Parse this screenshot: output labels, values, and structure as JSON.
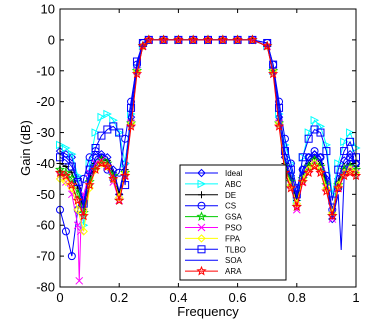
{
  "chart_data": {
    "type": "line",
    "title": "",
    "xlabel": "Frequency",
    "ylabel": "Gain (dB)",
    "xlim": [
      0,
      1
    ],
    "ylim": [
      -80,
      10
    ],
    "xticks": [
      "0",
      "0.2",
      "0.4",
      "0.6",
      "0.8",
      "1"
    ],
    "yticks": [
      "10",
      "0",
      "-10",
      "-20",
      "-30",
      "-40",
      "-50",
      "-60",
      "-70",
      "-80"
    ],
    "grid": false,
    "legend_position": "bottom-center",
    "series": [
      {
        "name": "Ideal",
        "color": "#0000ff",
        "marker": "diamond",
        "x": [
          0,
          0.02,
          0.04,
          0.06,
          0.08,
          0.1,
          0.12,
          0.14,
          0.16,
          0.18,
          0.2,
          0.22,
          0.24,
          0.26,
          0.28,
          0.3,
          0.35,
          0.4,
          0.45,
          0.5,
          0.55,
          0.6,
          0.65,
          0.7,
          0.72,
          0.74,
          0.76,
          0.78,
          0.8,
          0.82,
          0.84,
          0.86,
          0.88,
          0.9,
          0.92,
          0.94,
          0.96,
          0.98,
          1
        ],
        "y": [
          -36,
          -37,
          -38,
          -45,
          -52,
          -43,
          -38,
          -37,
          -38,
          -42,
          -50,
          -40,
          -25,
          -10,
          -2,
          0,
          0,
          0,
          0,
          0,
          0,
          0,
          0,
          -2,
          -10,
          -25,
          -38,
          -44,
          -50,
          -42,
          -38,
          -37,
          -38,
          -45,
          -58,
          -45,
          -39,
          -37,
          -40
        ]
      },
      {
        "name": "ABC",
        "color": "#00ffff",
        "marker": "triangle-right",
        "x": [
          0,
          0.02,
          0.04,
          0.06,
          0.08,
          0.1,
          0.12,
          0.14,
          0.16,
          0.18,
          0.2,
          0.22,
          0.24,
          0.26,
          0.28,
          0.3,
          0.35,
          0.4,
          0.45,
          0.5,
          0.55,
          0.6,
          0.65,
          0.7,
          0.72,
          0.74,
          0.76,
          0.78,
          0.8,
          0.82,
          0.84,
          0.86,
          0.88,
          0.9,
          0.92,
          0.94,
          0.96,
          0.98,
          1
        ],
        "y": [
          -34,
          -35,
          -37,
          -44,
          -60,
          -40,
          -30,
          -25,
          -24,
          -26,
          -30,
          -40,
          -24,
          -9,
          -2,
          0,
          0,
          0,
          0,
          0,
          0,
          0,
          0,
          -2,
          -10,
          -24,
          -34,
          -40,
          -52,
          -38,
          -30,
          -26,
          -28,
          -34,
          -50,
          -40,
          -33,
          -30,
          -35
        ]
      },
      {
        "name": "DE",
        "color": "#000000",
        "marker": "plus",
        "x": [
          0,
          0.02,
          0.04,
          0.06,
          0.08,
          0.1,
          0.12,
          0.14,
          0.16,
          0.18,
          0.2,
          0.22,
          0.24,
          0.26,
          0.28,
          0.3,
          0.35,
          0.4,
          0.45,
          0.5,
          0.55,
          0.6,
          0.65,
          0.7,
          0.72,
          0.74,
          0.76,
          0.78,
          0.8,
          0.82,
          0.84,
          0.86,
          0.88,
          0.9,
          0.92,
          0.94,
          0.96,
          0.98,
          1
        ],
        "y": [
          -40,
          -41,
          -43,
          -48,
          -55,
          -45,
          -40,
          -38,
          -39,
          -43,
          -50,
          -42,
          -26,
          -10,
          -2,
          0,
          0,
          0,
          0,
          0,
          0,
          0,
          0,
          -2,
          -10,
          -26,
          -40,
          -45,
          -52,
          -44,
          -40,
          -38,
          -40,
          -46,
          -56,
          -46,
          -41,
          -40,
          -41
        ]
      },
      {
        "name": "CS",
        "color": "#0000ff",
        "marker": "circle",
        "x": [
          0,
          0.02,
          0.04,
          0.06,
          0.08,
          0.1,
          0.12,
          0.14,
          0.16,
          0.18,
          0.2,
          0.22,
          0.24,
          0.26,
          0.28,
          0.3,
          0.35,
          0.4,
          0.45,
          0.5,
          0.55,
          0.6,
          0.65,
          0.7,
          0.72,
          0.74,
          0.76,
          0.78,
          0.8,
          0.82,
          0.84,
          0.86,
          0.88,
          0.9,
          0.92,
          0.94,
          0.96,
          0.98,
          1
        ],
        "y": [
          -55,
          -62,
          -70,
          -55,
          -45,
          -38,
          -36,
          -38,
          -42,
          -45,
          -43,
          -32,
          -20,
          -8,
          -1,
          0,
          0,
          0,
          0,
          0,
          0,
          0,
          0,
          -1,
          -8,
          -20,
          -32,
          -40,
          -48,
          -42,
          -38,
          -36,
          -38,
          -44,
          -55,
          -48,
          -42,
          -38,
          -40
        ]
      },
      {
        "name": "GSA",
        "color": "#00cc00",
        "marker": "star",
        "x": [
          0,
          0.02,
          0.04,
          0.06,
          0.08,
          0.1,
          0.12,
          0.14,
          0.16,
          0.18,
          0.2,
          0.22,
          0.24,
          0.26,
          0.28,
          0.3,
          0.35,
          0.4,
          0.45,
          0.5,
          0.55,
          0.6,
          0.65,
          0.7,
          0.72,
          0.74,
          0.76,
          0.78,
          0.8,
          0.82,
          0.84,
          0.86,
          0.88,
          0.9,
          0.92,
          0.94,
          0.96,
          0.98,
          1
        ],
        "y": [
          -42,
          -43,
          -45,
          -50,
          -56,
          -46,
          -41,
          -39,
          -40,
          -44,
          -52,
          -43,
          -27,
          -10,
          -2,
          0,
          0,
          0,
          0,
          0,
          0,
          0,
          0,
          -2,
          -10,
          -27,
          -41,
          -46,
          -54,
          -45,
          -41,
          -39,
          -41,
          -47,
          -57,
          -47,
          -42,
          -41,
          -42
        ]
      },
      {
        "name": "PSO",
        "color": "#ff00ff",
        "marker": "x",
        "x": [
          0,
          0.02,
          0.04,
          0.06,
          0.065,
          0.07,
          0.08,
          0.1,
          0.12,
          0.14,
          0.16,
          0.18,
          0.2,
          0.22,
          0.24,
          0.26,
          0.28,
          0.3,
          0.35,
          0.4,
          0.45,
          0.5,
          0.55,
          0.6,
          0.65,
          0.7,
          0.72,
          0.74,
          0.76,
          0.78,
          0.8,
          0.82,
          0.84,
          0.86,
          0.88,
          0.9,
          0.92,
          0.94,
          0.96,
          0.98,
          1
        ],
        "y": [
          -44,
          -46,
          -50,
          -60,
          -78,
          -62,
          -50,
          -43,
          -40,
          -39,
          -41,
          -46,
          -52,
          -44,
          -27,
          -10,
          -2,
          0,
          0,
          0,
          0,
          0,
          0,
          0,
          0,
          -2,
          -10,
          -27,
          -42,
          -47,
          -55,
          -46,
          -42,
          -40,
          -42,
          -48,
          -58,
          -48,
          -43,
          -42,
          -43
        ]
      },
      {
        "name": "FPA",
        "color": "#ffff00",
        "marker": "diamond",
        "x": [
          0,
          0.02,
          0.04,
          0.06,
          0.08,
          0.1,
          0.12,
          0.14,
          0.16,
          0.18,
          0.2,
          0.22,
          0.24,
          0.26,
          0.28,
          0.3,
          0.35,
          0.4,
          0.45,
          0.5,
          0.55,
          0.6,
          0.65,
          0.7,
          0.72,
          0.74,
          0.76,
          0.78,
          0.8,
          0.82,
          0.84,
          0.86,
          0.88,
          0.9,
          0.92,
          0.94,
          0.96,
          0.98,
          1
        ],
        "y": [
          -45,
          -46,
          -48,
          -55,
          -62,
          -48,
          -42,
          -40,
          -41,
          -45,
          -51,
          -43,
          -27,
          -10,
          -2,
          0,
          0,
          0,
          0,
          0,
          0,
          0,
          0,
          -2,
          -10,
          -27,
          -42,
          -47,
          -53,
          -45,
          -42,
          -40,
          -42,
          -48,
          -56,
          -47,
          -43,
          -42,
          -43
        ]
      },
      {
        "name": "TLBO",
        "color": "#0000ff",
        "marker": "square",
        "x": [
          0,
          0.02,
          0.04,
          0.06,
          0.08,
          0.1,
          0.12,
          0.14,
          0.16,
          0.18,
          0.2,
          0.22,
          0.24,
          0.26,
          0.28,
          0.3,
          0.35,
          0.4,
          0.45,
          0.5,
          0.55,
          0.6,
          0.65,
          0.7,
          0.72,
          0.74,
          0.76,
          0.78,
          0.8,
          0.82,
          0.84,
          0.86,
          0.88,
          0.9,
          0.92,
          0.94,
          0.96,
          0.98,
          1
        ],
        "y": [
          -38,
          -39,
          -41,
          -46,
          -53,
          -42,
          -35,
          -31,
          -29,
          -28,
          -30,
          -47,
          -22,
          -7,
          -1,
          0,
          0,
          0,
          0,
          0,
          0,
          0,
          0,
          -1,
          -8,
          -22,
          -36,
          -42,
          -50,
          -38,
          -32,
          -29,
          -30,
          -36,
          -52,
          -42,
          -36,
          -33,
          -38
        ]
      },
      {
        "name": "SOA",
        "color": "#0000ff",
        "marker": "none",
        "x": [
          0,
          0.02,
          0.04,
          0.06,
          0.08,
          0.1,
          0.12,
          0.14,
          0.16,
          0.18,
          0.2,
          0.22,
          0.24,
          0.26,
          0.28,
          0.3,
          0.35,
          0.4,
          0.45,
          0.5,
          0.55,
          0.6,
          0.65,
          0.7,
          0.72,
          0.74,
          0.76,
          0.78,
          0.8,
          0.82,
          0.84,
          0.86,
          0.88,
          0.9,
          0.92,
          0.94,
          0.95,
          0.96,
          0.98,
          1
        ],
        "y": [
          -37,
          -38,
          -40,
          -46,
          -54,
          -44,
          -39,
          -37,
          -38,
          -42,
          -49,
          -41,
          -25,
          -9,
          -2,
          0,
          0,
          0,
          0,
          0,
          0,
          0,
          0,
          -2,
          -10,
          -25,
          -39,
          -45,
          -51,
          -43,
          -39,
          -37,
          -39,
          -45,
          -58,
          -50,
          -68,
          -44,
          -39,
          -40
        ]
      },
      {
        "name": "ARA",
        "color": "#ff0000",
        "marker": "star",
        "x": [
          0,
          0.02,
          0.04,
          0.06,
          0.08,
          0.1,
          0.12,
          0.14,
          0.16,
          0.18,
          0.2,
          0.22,
          0.24,
          0.26,
          0.28,
          0.3,
          0.35,
          0.4,
          0.45,
          0.5,
          0.55,
          0.6,
          0.65,
          0.7,
          0.72,
          0.74,
          0.76,
          0.78,
          0.8,
          0.82,
          0.84,
          0.86,
          0.88,
          0.9,
          0.92,
          0.94,
          0.96,
          0.98,
          1
        ],
        "y": [
          -43,
          -44,
          -47,
          -52,
          -57,
          -47,
          -42,
          -40,
          -41,
          -45,
          -52,
          -44,
          -28,
          -11,
          -2,
          0,
          0,
          0,
          0,
          0,
          0,
          0,
          0,
          -2,
          -11,
          -28,
          -43,
          -48,
          -54,
          -46,
          -43,
          -41,
          -43,
          -49,
          -57,
          -48,
          -44,
          -43,
          -44
        ]
      }
    ]
  }
}
